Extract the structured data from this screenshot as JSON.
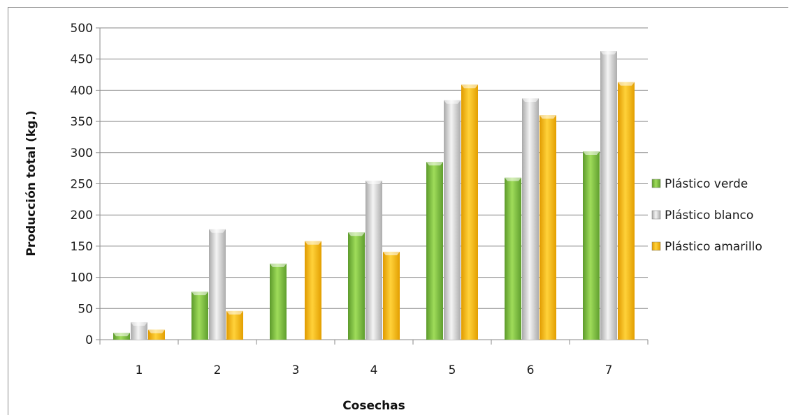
{
  "chart_data": {
    "type": "bar",
    "categories": [
      "1",
      "2",
      "3",
      "4",
      "5",
      "6",
      "7"
    ],
    "series": [
      {
        "name": "Plástico verde",
        "values": [
          11,
          77,
          122,
          172,
          285,
          260,
          302
        ],
        "color": "#7dc241"
      },
      {
        "name": "Plástico blanco",
        "values": [
          28,
          177,
          0,
          255,
          384,
          387,
          463
        ],
        "color": "#d0d0d0"
      },
      {
        "name": "Plástico amarillo",
        "values": [
          16,
          46,
          158,
          141,
          409,
          360,
          413
        ],
        "color": "#f5b800"
      }
    ],
    "yticks": [
      "0",
      "50",
      "100",
      "150",
      "200",
      "250",
      "300",
      "350",
      "400",
      "450",
      "500"
    ],
    "ylim": [
      0,
      500
    ],
    "xlabel": "Cosechas",
    "ylabel": "Producción total (kg.)",
    "grid": true,
    "legend_position": "right"
  }
}
